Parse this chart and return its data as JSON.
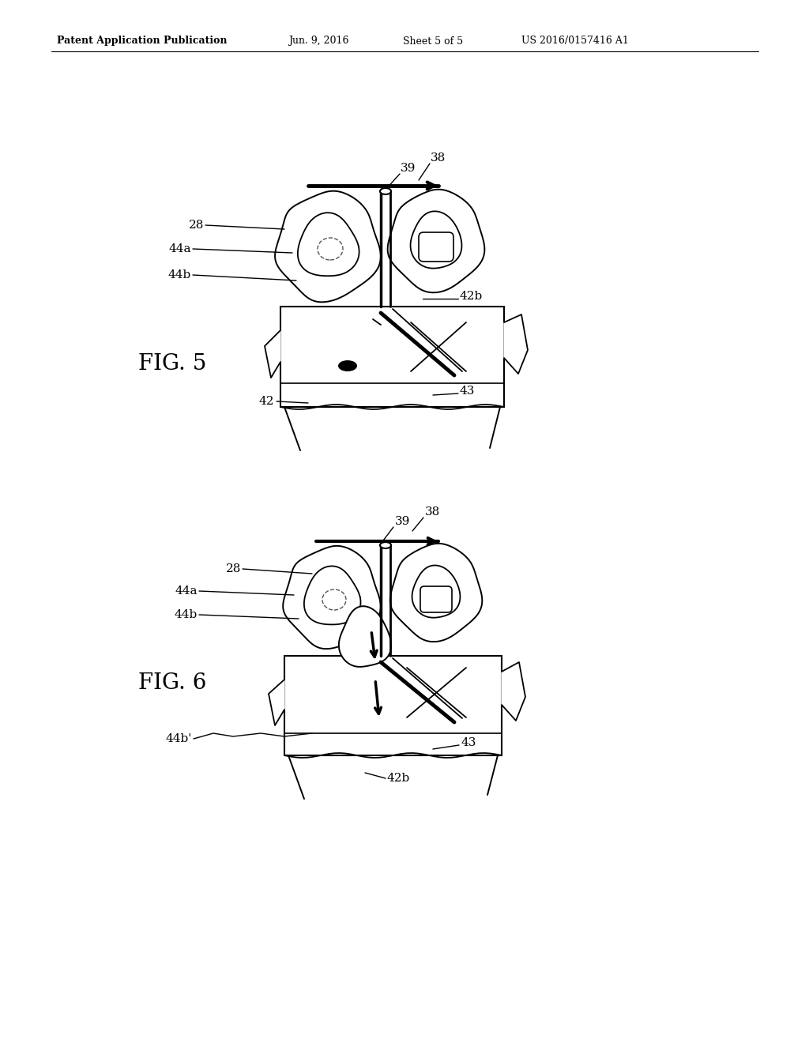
{
  "background_color": "#ffffff",
  "header_text": "Patent Application Publication",
  "header_date": "Jun. 9, 2016",
  "header_sheet": "Sheet 5 of 5",
  "header_patent": "US 2016/0157416 A1",
  "fig5_label": "FIG. 5",
  "fig6_label": "FIG. 6",
  "line_color": "#000000",
  "gray_color": "#888888"
}
